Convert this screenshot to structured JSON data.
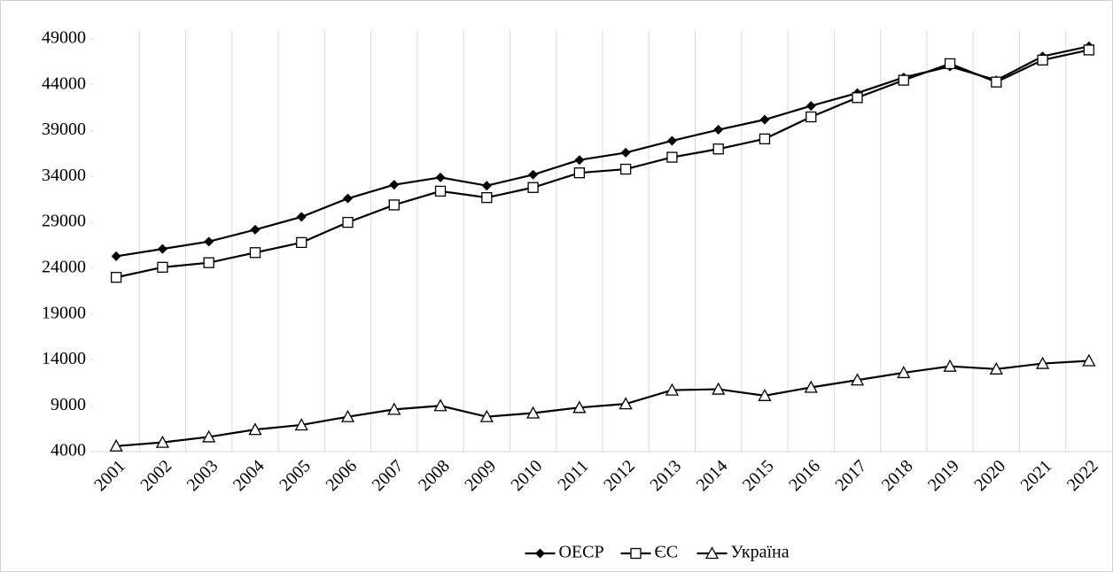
{
  "chart_data": {
    "type": "line",
    "categories": [
      "2001",
      "2002",
      "2003",
      "2004",
      "2005",
      "2006",
      "2007",
      "2008",
      "2009",
      "2010",
      "2011",
      "2012",
      "2013",
      "2014",
      "2015",
      "2016",
      "2017",
      "2018",
      "2019",
      "2020",
      "2021",
      "2022"
    ],
    "series": [
      {
        "name": "ОЕСР",
        "color": "#000000",
        "marker": "diamond",
        "values": [
          25300,
          26100,
          26900,
          28200,
          29600,
          31600,
          33100,
          33900,
          33000,
          34200,
          35800,
          36600,
          37900,
          39100,
          40200,
          41700,
          43100,
          44800,
          46000,
          44500,
          47100,
          48200
        ]
      },
      {
        "name": "ЄС",
        "color": "#000000",
        "marker": "square",
        "values": [
          23000,
          24100,
          24600,
          25700,
          26800,
          29000,
          30900,
          32400,
          31700,
          32800,
          34400,
          34800,
          36100,
          37000,
          38100,
          40500,
          42600,
          44500,
          46300,
          44300,
          46700,
          47800
        ]
      },
      {
        "name": "Україна",
        "color": "#000000",
        "marker": "triangle",
        "values": [
          4600,
          5000,
          5600,
          6400,
          6900,
          7800,
          8600,
          9000,
          7800,
          8200,
          8800,
          9200,
          10700,
          10800,
          10100,
          11000,
          11800,
          12600,
          13300,
          13000,
          13600,
          13900
        ]
      }
    ],
    "ylim": [
      4000,
      49000
    ],
    "yticks": [
      4000,
      9000,
      14000,
      19000,
      24000,
      29000,
      34000,
      39000,
      44000,
      49000
    ],
    "grid": "vertical",
    "legend": "bottom"
  }
}
